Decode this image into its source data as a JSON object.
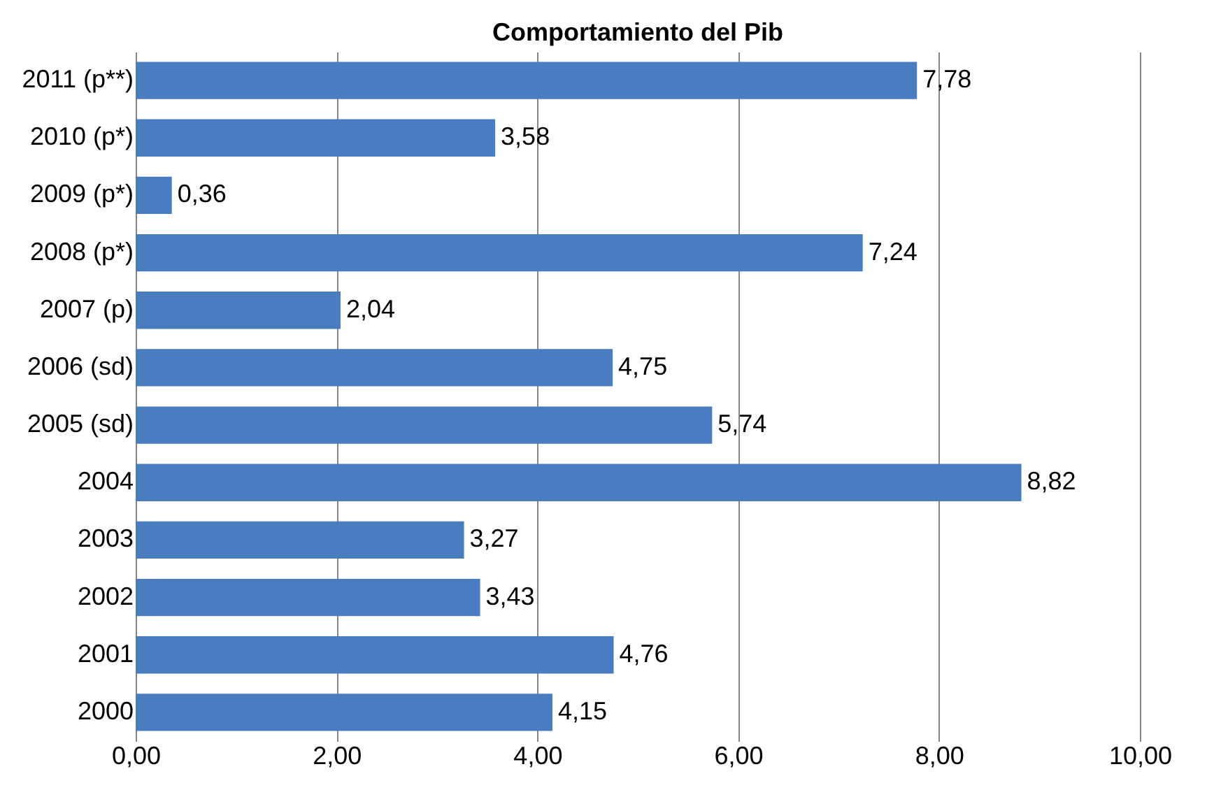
{
  "chart_data": {
    "type": "bar",
    "orientation": "horizontal",
    "title": "Comportamiento del Pib",
    "categories": [
      "2011 (p**)",
      "2010 (p*)",
      "2009 (p*)",
      "2008 (p*)",
      "2007 (p)",
      "2006 (sd)",
      "2005 (sd)",
      "2004",
      "2003",
      "2002",
      "2001",
      "2000"
    ],
    "values": [
      7.78,
      3.58,
      0.36,
      7.24,
      2.04,
      4.75,
      5.74,
      8.82,
      3.27,
      3.43,
      4.76,
      4.15
    ],
    "value_labels": [
      "7,78",
      "3,58",
      "0,36",
      "7,24",
      "2,04",
      "4,75",
      "5,74",
      "8,82",
      "3,27",
      "3,43",
      "4,76",
      "4,15"
    ],
    "color": "#4a7cc0",
    "xlim": [
      0,
      10
    ],
    "xticks": [
      {
        "value": 0,
        "label": "0,00"
      },
      {
        "value": 2,
        "label": "2,00"
      },
      {
        "value": 4,
        "label": "4,00"
      },
      {
        "value": 6,
        "label": "6,00"
      },
      {
        "value": 8,
        "label": "8,00"
      },
      {
        "value": 10,
        "label": "10,00"
      }
    ],
    "grid": "x"
  }
}
